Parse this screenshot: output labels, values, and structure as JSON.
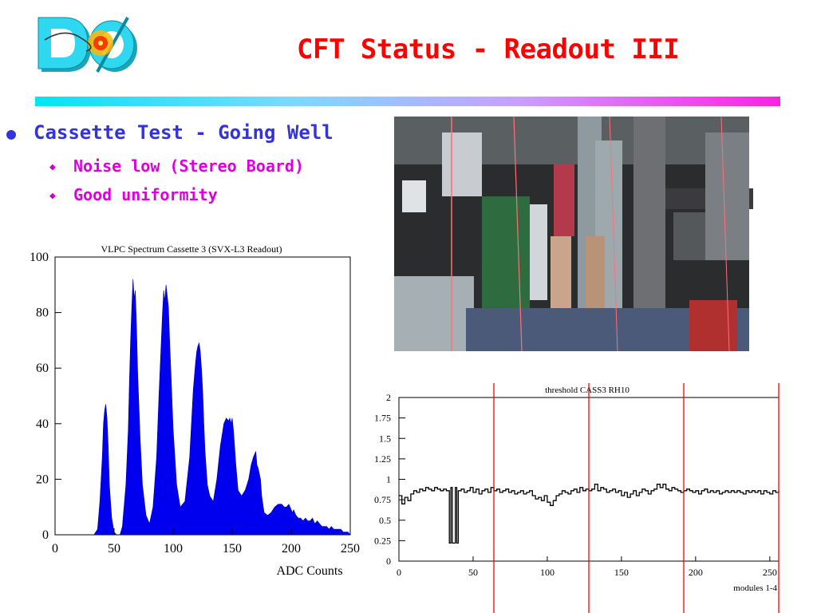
{
  "slide": {
    "title": "CFT Status - Readout III",
    "bullets": [
      {
        "text": "Cassette Test - Going Well",
        "sub": [
          "Noise low (Stereo Board)",
          "Good uniformity"
        ]
      }
    ]
  },
  "colors": {
    "title": "#ff0000",
    "bullet_level1": "#3333dd",
    "bullet_level2": "#dd00dd",
    "histogram_fill": "#0000ee",
    "marker_lines": "#ff0000"
  },
  "icons": {
    "logo": "d0-experiment-logo",
    "bullet_level1": "round-bullet",
    "bullet_level2": "diamond-bullet"
  },
  "photo": {
    "description_icon": "lab-electronics-photo"
  },
  "chart_data": [
    {
      "type": "area",
      "title": "VLPC Spectrum Cassette 3 (SVX-L3 Readout)",
      "xlabel": "ADC Counts",
      "ylabel": "",
      "xlim": [
        0,
        250
      ],
      "ylim": [
        0,
        100
      ],
      "x_ticks": [
        "0",
        "50",
        "100",
        "150",
        "200",
        "250"
      ],
      "y_ticks": [
        "0",
        "20",
        "40",
        "60",
        "80",
        "100"
      ],
      "grid": false,
      "x": [
        30,
        33,
        36,
        38,
        40,
        41,
        42,
        43,
        44,
        45,
        46,
        48,
        50,
        52,
        55,
        57,
        60,
        62,
        63,
        64,
        65,
        66,
        67,
        68,
        69,
        70,
        72,
        74,
        77,
        80,
        83,
        86,
        88,
        90,
        91,
        92,
        93,
        94,
        95,
        96,
        97,
        98,
        100,
        103,
        106,
        110,
        114,
        117,
        119,
        120,
        121,
        122,
        123,
        124,
        125,
        126,
        127,
        129,
        131,
        134,
        137,
        140,
        143,
        145,
        147,
        148,
        149,
        150,
        151,
        152,
        153,
        155,
        158,
        161,
        164,
        166,
        168,
        170,
        171,
        172,
        173,
        174,
        175,
        177,
        180,
        183,
        186,
        189,
        192,
        194,
        196,
        198,
        199,
        200,
        201,
        202,
        203,
        204,
        206,
        208,
        210,
        212,
        214,
        216,
        218,
        220,
        222,
        224,
        226,
        228,
        230,
        232,
        234,
        236,
        238,
        240,
        242,
        244,
        246,
        248,
        250
      ],
      "values": [
        0,
        0,
        2,
        12,
        28,
        40,
        45,
        47,
        42,
        32,
        18,
        6,
        1,
        0,
        0,
        3,
        18,
        38,
        55,
        70,
        82,
        92,
        85,
        88,
        75,
        58,
        35,
        18,
        7,
        4,
        10,
        28,
        50,
        70,
        80,
        88,
        84,
        90,
        86,
        82,
        70,
        60,
        38,
        18,
        10,
        12,
        28,
        52,
        62,
        66,
        68,
        69,
        66,
        60,
        52,
        40,
        30,
        18,
        14,
        12,
        20,
        32,
        40,
        42,
        41,
        42,
        40,
        42,
        38,
        32,
        26,
        16,
        14,
        16,
        20,
        25,
        28,
        30,
        25,
        24,
        22,
        20,
        14,
        8,
        7,
        8,
        10,
        11,
        11,
        10,
        10,
        11,
        10,
        9,
        8,
        9,
        8,
        7,
        6,
        6,
        5,
        6,
        5,
        5,
        6,
        4,
        5,
        4,
        3,
        3,
        3,
        2,
        3,
        2,
        2,
        2,
        2,
        1,
        1,
        1,
        0
      ]
    },
    {
      "type": "line",
      "title": "threshold CASS3 RH10",
      "xlabel": "modules 1-4",
      "ylabel": "",
      "xlim": [
        0,
        256
      ],
      "ylim": [
        0,
        2
      ],
      "x_ticks": [
        "0",
        "50",
        "100",
        "150",
        "200",
        "250"
      ],
      "y_ticks": [
        "0",
        "0.25",
        "0.5",
        "0.75",
        "1",
        "1.25",
        "1.5",
        "1.75",
        "2"
      ],
      "grid": false,
      "step": true,
      "vertical_markers": [
        64,
        128,
        192,
        256
      ],
      "x": [
        0,
        2,
        4,
        6,
        8,
        10,
        12,
        14,
        16,
        18,
        20,
        22,
        24,
        26,
        28,
        30,
        32,
        34,
        35,
        36,
        37,
        38,
        39,
        40,
        42,
        44,
        46,
        48,
        50,
        52,
        54,
        56,
        58,
        60,
        62,
        64,
        66,
        68,
        70,
        72,
        74,
        76,
        78,
        80,
        82,
        84,
        86,
        88,
        90,
        92,
        94,
        96,
        98,
        100,
        102,
        104,
        106,
        108,
        110,
        112,
        114,
        116,
        118,
        120,
        122,
        124,
        126,
        128,
        130,
        132,
        134,
        136,
        138,
        140,
        142,
        144,
        146,
        148,
        150,
        152,
        154,
        156,
        158,
        160,
        162,
        164,
        166,
        168,
        170,
        172,
        174,
        176,
        178,
        180,
        182,
        184,
        186,
        188,
        190,
        192,
        194,
        196,
        198,
        200,
        202,
        204,
        206,
        208,
        210,
        212,
        214,
        216,
        218,
        220,
        222,
        224,
        226,
        228,
        230,
        232,
        234,
        236,
        238,
        240,
        242,
        244,
        246,
        248,
        250,
        252,
        254,
        256
      ],
      "values": [
        0.8,
        0.7,
        0.78,
        0.74,
        0.82,
        0.86,
        0.84,
        0.88,
        0.86,
        0.9,
        0.88,
        0.86,
        0.9,
        0.88,
        0.86,
        0.88,
        0.86,
        0.22,
        0.9,
        0.22,
        0.22,
        0.9,
        0.22,
        0.86,
        0.88,
        0.84,
        0.86,
        0.9,
        0.84,
        0.88,
        0.82,
        0.86,
        0.88,
        0.84,
        0.9,
        0.86,
        0.88,
        0.84,
        0.86,
        0.88,
        0.84,
        0.86,
        0.82,
        0.84,
        0.86,
        0.82,
        0.84,
        0.86,
        0.8,
        0.76,
        0.78,
        0.74,
        0.8,
        0.72,
        0.68,
        0.74,
        0.8,
        0.82,
        0.86,
        0.84,
        0.82,
        0.86,
        0.88,
        0.84,
        0.9,
        0.86,
        0.88,
        0.86,
        0.88,
        0.94,
        0.86,
        0.9,
        0.88,
        0.84,
        0.86,
        0.88,
        0.84,
        0.86,
        0.8,
        0.84,
        0.78,
        0.82,
        0.86,
        0.8,
        0.84,
        0.88,
        0.86,
        0.82,
        0.86,
        0.88,
        0.94,
        0.9,
        0.94,
        0.88,
        0.86,
        0.9,
        0.88,
        0.86,
        0.84,
        0.86,
        0.88,
        0.86,
        0.84,
        0.86,
        0.82,
        0.86,
        0.88,
        0.84,
        0.86,
        0.84,
        0.86,
        0.82,
        0.84,
        0.86,
        0.84,
        0.86,
        0.84,
        0.86,
        0.84,
        0.82,
        0.86,
        0.84,
        0.86,
        0.84,
        0.86,
        0.82,
        0.86,
        0.84,
        0.82,
        0.86,
        0.84,
        0.86
      ]
    }
  ]
}
